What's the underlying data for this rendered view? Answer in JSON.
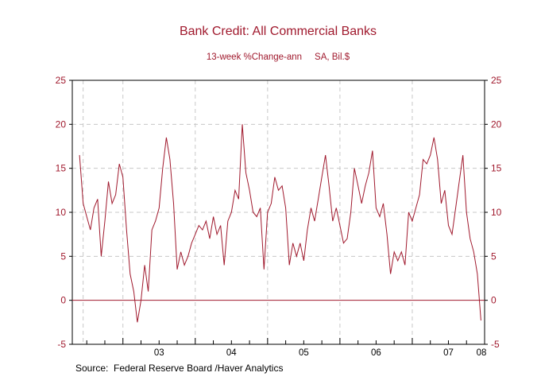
{
  "chart_data": {
    "type": "line",
    "title": "Bank Credit: All Commercial Banks",
    "subtitle": "13-week %Change-ann     SA, Bil.$",
    "source": "Source:  Federal Reserve Board /Haver Analytics",
    "xlim": [
      2002.3,
      2008.0
    ],
    "ylim": [
      -5,
      25
    ],
    "yticks": [
      -5,
      0,
      5,
      10,
      15,
      20,
      25
    ],
    "ytick_labels": [
      "-5",
      "0",
      "5",
      "10",
      "15",
      "20",
      "25"
    ],
    "xticks": [
      {
        "label": "03",
        "year": 2003
      },
      {
        "label": "04",
        "year": 2004
      },
      {
        "label": "05",
        "year": 2005
      },
      {
        "label": "06",
        "year": 2006
      },
      {
        "label": "07",
        "year": 2007
      },
      {
        "label": "08",
        "year": 2008
      }
    ],
    "grid": true,
    "series_color": "#a0192d",
    "zero_line_color": "#a0192d",
    "series": [
      {
        "x": [
          2002.4,
          2002.45,
          2002.5,
          2002.55,
          2002.6,
          2002.65,
          2002.7,
          2002.75,
          2002.8,
          2002.85,
          2002.9,
          2002.95,
          2003.0,
          2003.05,
          2003.1,
          2003.15,
          2003.2,
          2003.25,
          2003.3,
          2003.35,
          2003.4,
          2003.45,
          2003.5,
          2003.55,
          2003.6,
          2003.65,
          2003.7,
          2003.75,
          2003.8,
          2003.85,
          2003.9,
          2003.95,
          2004.0,
          2004.05,
          2004.1,
          2004.15,
          2004.2,
          2004.25,
          2004.3,
          2004.35,
          2004.4,
          2004.45,
          2004.5,
          2004.55,
          2004.6,
          2004.65,
          2004.7,
          2004.75,
          2004.8,
          2004.85,
          2004.9,
          2004.95,
          2005.0,
          2005.05,
          2005.1,
          2005.15,
          2005.2,
          2005.25,
          2005.3,
          2005.35,
          2005.4,
          2005.45,
          2005.5,
          2005.55,
          2005.6,
          2005.65,
          2005.7,
          2005.75,
          2005.8,
          2005.85,
          2005.9,
          2005.95,
          2006.0,
          2006.05,
          2006.1,
          2006.15,
          2006.2,
          2006.25,
          2006.3,
          2006.35,
          2006.4,
          2006.45,
          2006.5,
          2006.55,
          2006.6,
          2006.65,
          2006.7,
          2006.75,
          2006.8,
          2006.85,
          2006.9,
          2006.95,
          2007.0,
          2007.05,
          2007.1,
          2007.15,
          2007.2,
          2007.25,
          2007.3,
          2007.35,
          2007.4,
          2007.45,
          2007.5,
          2007.55,
          2007.6,
          2007.65,
          2007.7,
          2007.75,
          2007.8,
          2007.85,
          2007.9,
          2007.95
        ],
        "values": [
          16.5,
          11.0,
          9.5,
          8.0,
          10.5,
          11.5,
          5.0,
          9.0,
          13.5,
          11.0,
          12.0,
          15.5,
          14.0,
          8.0,
          3.0,
          1.0,
          -2.5,
          0.0,
          4.0,
          1.0,
          8.0,
          9.0,
          10.5,
          15.0,
          18.5,
          16.0,
          11.0,
          3.5,
          5.5,
          4.0,
          5.0,
          6.5,
          7.5,
          8.5,
          8.0,
          9.0,
          7.0,
          9.5,
          7.5,
          8.5,
          4.0,
          9.0,
          10.0,
          12.5,
          11.5,
          20.0,
          14.5,
          12.5,
          10.0,
          9.5,
          10.5,
          3.5,
          10.0,
          11.0,
          14.0,
          12.5,
          13.0,
          10.5,
          4.0,
          6.5,
          5.0,
          6.5,
          4.5,
          8.0,
          10.5,
          9.0,
          11.5,
          14.0,
          16.5,
          13.0,
          9.0,
          10.5,
          8.5,
          6.5,
          7.0,
          10.0,
          15.0,
          13.0,
          11.0,
          13.0,
          14.5,
          17.0,
          10.5,
          9.5,
          11.0,
          7.5,
          3.0,
          5.5,
          4.5,
          5.5,
          4.0,
          10.0,
          9.0,
          10.5,
          12.0,
          16.0,
          15.5,
          16.5,
          18.5,
          16.0,
          11.0,
          12.5,
          8.5,
          7.5,
          10.5,
          13.5,
          16.5,
          10.0,
          7.0,
          5.5,
          3.0,
          -2.3
        ]
      }
    ]
  }
}
